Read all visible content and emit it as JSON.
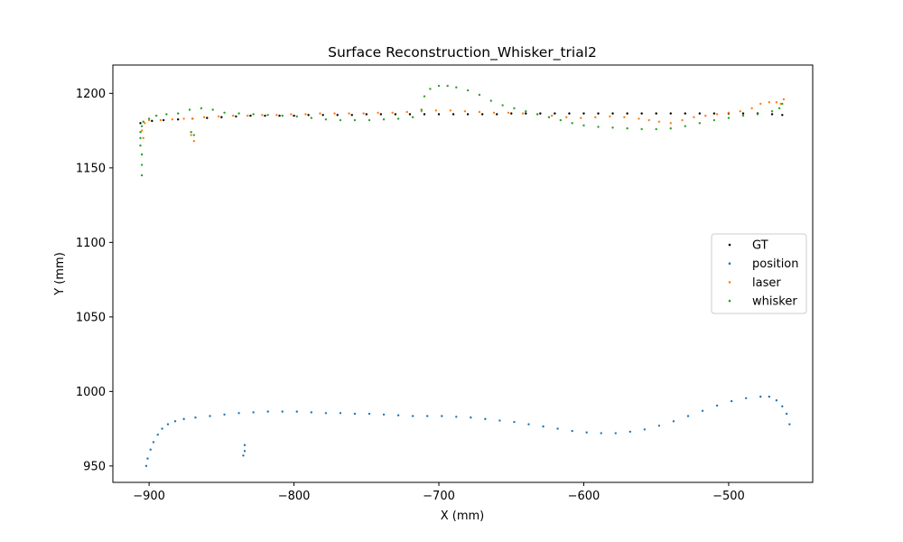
{
  "chart_data": {
    "type": "scatter",
    "title": "Surface Reconstruction_Whisker_trial2",
    "xlabel": "X (mm)",
    "ylabel": "Y (mm)",
    "xlim": [
      -925,
      -442
    ],
    "ylim": [
      939,
      1219
    ],
    "xticks": [
      -900,
      -800,
      -700,
      -600,
      -500
    ],
    "yticks": [
      950,
      1000,
      1050,
      1100,
      1150,
      1200
    ],
    "grid": false,
    "legend_position": "center-right",
    "series": [
      {
        "name": "GT",
        "color": "#000000",
        "points": [
          [
            -906,
            1180
          ],
          [
            -898,
            1181.5
          ],
          [
            -890,
            1182
          ],
          [
            -880,
            1182.5
          ],
          [
            -870,
            1183
          ],
          [
            -860,
            1183.5
          ],
          [
            -850,
            1184
          ],
          [
            -840,
            1184.5
          ],
          [
            -830,
            1185
          ],
          [
            -820,
            1185
          ],
          [
            -810,
            1185
          ],
          [
            -800,
            1185
          ],
          [
            -790,
            1185.5
          ],
          [
            -780,
            1185.5
          ],
          [
            -770,
            1185.5
          ],
          [
            -760,
            1185.5
          ],
          [
            -750,
            1186
          ],
          [
            -740,
            1186
          ],
          [
            -730,
            1186
          ],
          [
            -720,
            1186
          ],
          [
            -710,
            1186
          ],
          [
            -700,
            1186
          ],
          [
            -690,
            1186
          ],
          [
            -680,
            1186
          ],
          [
            -670,
            1186
          ],
          [
            -660,
            1186
          ],
          [
            -650,
            1186.5
          ],
          [
            -640,
            1186.5
          ],
          [
            -630,
            1186.5
          ],
          [
            -620,
            1186.5
          ],
          [
            -610,
            1186.5
          ],
          [
            -600,
            1186.5
          ],
          [
            -590,
            1186.5
          ],
          [
            -580,
            1186.5
          ],
          [
            -570,
            1186.5
          ],
          [
            -560,
            1186.5
          ],
          [
            -550,
            1186.5
          ],
          [
            -540,
            1186.5
          ],
          [
            -530,
            1186.5
          ],
          [
            -520,
            1186.5
          ],
          [
            -510,
            1186.5
          ],
          [
            -500,
            1186.5
          ],
          [
            -490,
            1186.5
          ],
          [
            -480,
            1186.5
          ],
          [
            -470,
            1186
          ],
          [
            -463,
            1185.5
          ]
        ]
      },
      {
        "name": "position",
        "color": "#1f77b4",
        "points": [
          [
            -902,
            950
          ],
          [
            -901,
            955
          ],
          [
            -899,
            961
          ],
          [
            -897,
            966
          ],
          [
            -894,
            971
          ],
          [
            -891,
            975
          ],
          [
            -887,
            978
          ],
          [
            -882,
            980
          ],
          [
            -876,
            981.5
          ],
          [
            -868,
            982.5
          ],
          [
            -858,
            983.5
          ],
          [
            -848,
            984.5
          ],
          [
            -838,
            985.5
          ],
          [
            -828,
            986
          ],
          [
            -818,
            986.5
          ],
          [
            -808,
            986.5
          ],
          [
            -798,
            986.5
          ],
          [
            -788,
            986
          ],
          [
            -778,
            985.5
          ],
          [
            -768,
            985.5
          ],
          [
            -758,
            985
          ],
          [
            -748,
            985
          ],
          [
            -738,
            984.5
          ],
          [
            -728,
            984
          ],
          [
            -718,
            983.5
          ],
          [
            -708,
            983.5
          ],
          [
            -698,
            983.5
          ],
          [
            -688,
            983
          ],
          [
            -678,
            982.5
          ],
          [
            -668,
            981.5
          ],
          [
            -658,
            980.5
          ],
          [
            -648,
            979.5
          ],
          [
            -638,
            978
          ],
          [
            -628,
            976.5
          ],
          [
            -618,
            975
          ],
          [
            -608,
            973.5
          ],
          [
            -598,
            972.5
          ],
          [
            -588,
            972
          ],
          [
            -578,
            972
          ],
          [
            -568,
            973
          ],
          [
            -558,
            974.5
          ],
          [
            -548,
            977
          ],
          [
            -538,
            980
          ],
          [
            -528,
            983.5
          ],
          [
            -518,
            987
          ],
          [
            -508,
            990.5
          ],
          [
            -498,
            993.5
          ],
          [
            -488,
            995.5
          ],
          [
            -478,
            996.5
          ],
          [
            -472,
            996.5
          ],
          [
            -467,
            994
          ],
          [
            -463,
            990
          ],
          [
            -460,
            985
          ],
          [
            -458,
            978
          ],
          [
            -835,
            957
          ],
          [
            -834,
            960
          ],
          [
            -834,
            964
          ]
        ]
      },
      {
        "name": "laser",
        "color": "#ff7f0e",
        "points": [
          [
            -905,
            1175
          ],
          [
            -904,
            1170
          ],
          [
            -903,
            1180
          ],
          [
            -900,
            1182
          ],
          [
            -892,
            1182
          ],
          [
            -884,
            1182.5
          ],
          [
            -876,
            1183
          ],
          [
            -870,
            1183
          ],
          [
            -871,
            1172
          ],
          [
            -869,
            1168
          ],
          [
            -862,
            1184
          ],
          [
            -852,
            1184.5
          ],
          [
            -842,
            1185
          ],
          [
            -832,
            1185
          ],
          [
            -822,
            1185.5
          ],
          [
            -812,
            1185.5
          ],
          [
            -802,
            1186
          ],
          [
            -792,
            1186
          ],
          [
            -782,
            1186.5
          ],
          [
            -772,
            1186.5
          ],
          [
            -762,
            1186.5
          ],
          [
            -752,
            1186.5
          ],
          [
            -742,
            1187
          ],
          [
            -732,
            1187
          ],
          [
            -722,
            1187.5
          ],
          [
            -712,
            1188
          ],
          [
            -702,
            1188.5
          ],
          [
            -692,
            1188.5
          ],
          [
            -682,
            1188
          ],
          [
            -672,
            1187.5
          ],
          [
            -662,
            1187
          ],
          [
            -652,
            1187
          ],
          [
            -642,
            1186.5
          ],
          [
            -632,
            1186
          ],
          [
            -622,
            1185
          ],
          [
            -612,
            1184
          ],
          [
            -602,
            1183.5
          ],
          [
            -592,
            1184
          ],
          [
            -582,
            1184.5
          ],
          [
            -572,
            1184
          ],
          [
            -562,
            1183
          ],
          [
            -555,
            1182
          ],
          [
            -548,
            1181
          ],
          [
            -540,
            1180
          ],
          [
            -532,
            1182
          ],
          [
            -524,
            1184
          ],
          [
            -516,
            1185
          ],
          [
            -508,
            1186
          ],
          [
            -500,
            1187
          ],
          [
            -492,
            1188
          ],
          [
            -484,
            1190
          ],
          [
            -478,
            1193
          ],
          [
            -472,
            1194
          ],
          [
            -467,
            1194
          ],
          [
            -464,
            1193
          ],
          [
            -462,
            1196
          ]
        ]
      },
      {
        "name": "whisker",
        "color": "#2ca02c",
        "points": [
          [
            -905,
            1145
          ],
          [
            -905,
            1152
          ],
          [
            -905,
            1159
          ],
          [
            -906,
            1165
          ],
          [
            -906,
            1170
          ],
          [
            -906,
            1174
          ],
          [
            -905,
            1178
          ],
          [
            -904,
            1181
          ],
          [
            -900,
            1183
          ],
          [
            -895,
            1185
          ],
          [
            -888,
            1186
          ],
          [
            -880,
            1186.5
          ],
          [
            -872,
            1189
          ],
          [
            -864,
            1190
          ],
          [
            -856,
            1189
          ],
          [
            -848,
            1187
          ],
          [
            -838,
            1186.5
          ],
          [
            -828,
            1186
          ],
          [
            -818,
            1185.5
          ],
          [
            -808,
            1185
          ],
          [
            -798,
            1184.5
          ],
          [
            -788,
            1183.5
          ],
          [
            -778,
            1182.5
          ],
          [
            -768,
            1182
          ],
          [
            -758,
            1182
          ],
          [
            -748,
            1182
          ],
          [
            -738,
            1182.5
          ],
          [
            -728,
            1183
          ],
          [
            -718,
            1184
          ],
          [
            -712,
            1189
          ],
          [
            -710,
            1198
          ],
          [
            -706,
            1203
          ],
          [
            -700,
            1205
          ],
          [
            -694,
            1205
          ],
          [
            -688,
            1204
          ],
          [
            -680,
            1202
          ],
          [
            -672,
            1199
          ],
          [
            -664,
            1195
          ],
          [
            -656,
            1192
          ],
          [
            -648,
            1190
          ],
          [
            -640,
            1188
          ],
          [
            -632,
            1186
          ],
          [
            -624,
            1184
          ],
          [
            -616,
            1182
          ],
          [
            -608,
            1180
          ],
          [
            -600,
            1178.5
          ],
          [
            -590,
            1177.5
          ],
          [
            -580,
            1177
          ],
          [
            -570,
            1176.5
          ],
          [
            -560,
            1176
          ],
          [
            -550,
            1176
          ],
          [
            -540,
            1176.5
          ],
          [
            -530,
            1178
          ],
          [
            -520,
            1180
          ],
          [
            -510,
            1182
          ],
          [
            -500,
            1183.5
          ],
          [
            -490,
            1185
          ],
          [
            -480,
            1186
          ],
          [
            -470,
            1188
          ],
          [
            -465,
            1190
          ],
          [
            -463,
            1193
          ],
          [
            -871,
            1174
          ],
          [
            -869,
            1172
          ]
        ]
      }
    ]
  }
}
